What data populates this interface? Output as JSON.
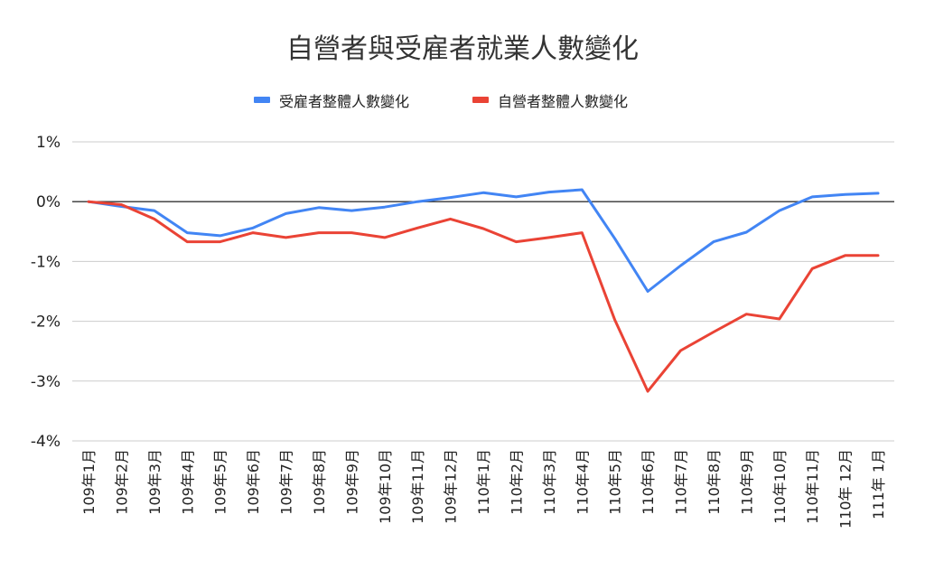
{
  "chart_data": {
    "type": "line",
    "title": "自營者與受雇者就業人數變化",
    "xlabel": "",
    "ylabel": "",
    "ylim": [
      -4,
      1
    ],
    "yticks": [
      1,
      0,
      -1,
      -2,
      -3,
      -4
    ],
    "ytick_labels": [
      "1%",
      "0%",
      "-1%",
      "-2%",
      "-3%",
      "-4%"
    ],
    "grid": true,
    "legend_position": "top",
    "categories": [
      "109年1月",
      "109年2月",
      "109年3月",
      "109年4月",
      "109年5月",
      "109年6月",
      "109年7月",
      "109年8月",
      "109年9月",
      "109年10月",
      "109年11月",
      "109年12月",
      "110年1月",
      "110年2月",
      "110年3月",
      "110年4月",
      "110年5月",
      "110年6月",
      "110年7月",
      "110年8月",
      "110年9月",
      "110年10月",
      "110年11月",
      "110年 12月",
      "111年 1月"
    ],
    "series": [
      {
        "name": "受雇者整體人數變化",
        "color": "#4285f4",
        "values": [
          0,
          -0.08,
          -0.15,
          -0.52,
          -0.57,
          -0.44,
          -0.2,
          -0.1,
          -0.15,
          -0.09,
          0,
          0.07,
          0.15,
          0.08,
          0.16,
          0.2,
          -0.62,
          -1.5,
          -1.07,
          -0.67,
          -0.51,
          -0.15,
          0.08,
          0.12,
          0.14
        ]
      },
      {
        "name": "自營者整體人數變化",
        "color": "#ea4335",
        "values": [
          0,
          -0.05,
          -0.29,
          -0.67,
          -0.67,
          -0.52,
          -0.6,
          -0.52,
          -0.52,
          -0.6,
          -0.44,
          -0.29,
          -0.45,
          -0.67,
          -0.6,
          -0.52,
          -1.98,
          -3.17,
          -2.49,
          -2.18,
          -1.88,
          -1.96,
          -1.12,
          -0.9,
          -0.9
        ]
      }
    ]
  }
}
